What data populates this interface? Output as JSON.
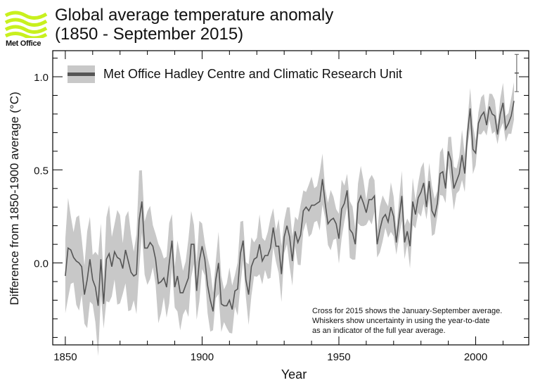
{
  "branding": {
    "logo_text": "Met Office",
    "logo_color": "#c8f01e"
  },
  "chart_data": {
    "type": "line",
    "title": "Global average temperature anomaly",
    "subtitle": "(1850 - September 2015)",
    "xlabel": "Year",
    "ylabel": "Difference from 1850-1900 average (°C)",
    "xlim": [
      1845.4,
      2019.4
    ],
    "ylim": [
      -0.44,
      1.14
    ],
    "xticks": [
      1850,
      1900,
      1950,
      2000
    ],
    "yticks": [
      0.0,
      0.5,
      1.0
    ],
    "ytick_labels": [
      "0.0",
      "0.5",
      "1.0"
    ],
    "grid": false,
    "legend": {
      "placement": "top-left",
      "entries": [
        "Met Office Hadley Centre and Climatic Research Unit"
      ]
    },
    "colors": {
      "line": "#555555",
      "band": "#c8c8c8",
      "axis": "#000000"
    },
    "series": [
      {
        "name": "Met Office Hadley Centre and Climatic Research Unit",
        "start_year": 1850,
        "values": [
          -0.07,
          0.08,
          0.07,
          0.03,
          0.01,
          0.0,
          -0.02,
          -0.17,
          -0.09,
          0.02,
          -0.09,
          -0.13,
          -0.23,
          0.02,
          -0.22,
          0.02,
          0.05,
          -0.02,
          0.06,
          0.03,
          0.02,
          -0.03,
          0.07,
          0.01,
          -0.05,
          -0.07,
          -0.06,
          0.23,
          0.33,
          0.08,
          0.08,
          0.11,
          0.09,
          0.02,
          -0.11,
          -0.1,
          -0.08,
          -0.13,
          0.0,
          0.12,
          -0.13,
          -0.07,
          -0.16,
          -0.16,
          -0.12,
          -0.08,
          0.1,
          0.1,
          -0.15,
          0.01,
          0.09,
          0.02,
          -0.12,
          -0.2,
          -0.26,
          -0.09,
          0.0,
          -0.22,
          -0.23,
          -0.23,
          -0.2,
          -0.25,
          -0.15,
          -0.14,
          0.05,
          0.12,
          -0.09,
          -0.17,
          -0.02,
          0.02,
          0.03,
          0.1,
          0.01,
          0.04,
          0.04,
          0.08,
          0.19,
          0.09,
          0.09,
          -0.06,
          0.14,
          0.2,
          0.14,
          0.01,
          0.17,
          0.11,
          0.15,
          0.28,
          0.3,
          0.28,
          0.31,
          0.31,
          0.32,
          0.33,
          0.45,
          0.32,
          0.21,
          0.23,
          0.24,
          0.21,
          0.13,
          0.29,
          0.32,
          0.39,
          0.18,
          0.16,
          0.1,
          0.32,
          0.36,
          0.32,
          0.27,
          0.34,
          0.34,
          0.36,
          0.1,
          0.18,
          0.24,
          0.26,
          0.22,
          0.3,
          0.25,
          0.11,
          0.24,
          0.36,
          0.11,
          0.17,
          0.09,
          0.33,
          0.26,
          0.35,
          0.38,
          0.43,
          0.3,
          0.44,
          0.28,
          0.25,
          0.32,
          0.48,
          0.49,
          0.4,
          0.6,
          0.55,
          0.4,
          0.44,
          0.48,
          0.58,
          0.48,
          0.69,
          0.83,
          0.61,
          0.59,
          0.75,
          0.79,
          0.81,
          0.74,
          0.84,
          0.8,
          0.79,
          0.69,
          0.8,
          0.86,
          0.72,
          0.75,
          0.79,
          0.87
        ],
        "uncertainty_by_period": [
          {
            "from": 1850,
            "to": 1879,
            "halfwidth": 0.2
          },
          {
            "from": 1880,
            "to": 1899,
            "halfwidth": 0.16
          },
          {
            "from": 1900,
            "to": 1919,
            "halfwidth": 0.13
          },
          {
            "from": 1920,
            "to": 1959,
            "halfwidth": 0.12
          },
          {
            "from": 1960,
            "to": 1999,
            "halfwidth": 0.1
          },
          {
            "from": 2000,
            "to": 2014,
            "halfwidth": 0.08
          }
        ]
      }
    ],
    "year_to_date": {
      "year": 2015,
      "value": 1.02,
      "lower": 0.92,
      "upper": 1.12
    },
    "annotation": "Cross for 2015 shows the January-September average.\nWhiskers show uncertainty in using the year-to-date\nas an indicator of the full year average."
  }
}
